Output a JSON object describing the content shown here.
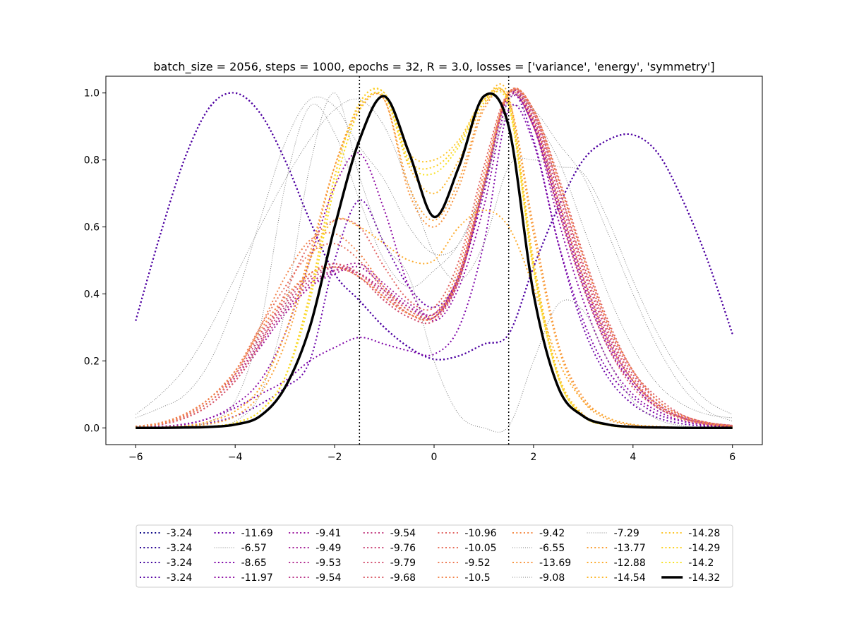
{
  "chart_data": {
    "type": "line",
    "title": "batch_size = 2056, steps = 1000, epochs = 32, R = 3.0, losses = ['variance', 'energy', 'symmetry']",
    "xlabel": "",
    "ylabel": "",
    "xlim": [
      -6.6,
      6.6
    ],
    "ylim": [
      -0.05,
      1.05
    ],
    "xticks": [
      -6,
      -4,
      -2,
      0,
      2,
      4,
      6
    ],
    "yticks": [
      0.0,
      0.2,
      0.4,
      0.6,
      0.8,
      1.0
    ],
    "xtick_labels": [
      "−6",
      "−4",
      "−2",
      "0",
      "2",
      "4",
      "6"
    ],
    "ytick_labels": [
      "0.0",
      "0.2",
      "0.4",
      "0.6",
      "0.8",
      "1.0"
    ],
    "grid": false,
    "legend_placement": "below",
    "legend_columns": 8,
    "vlines": [
      {
        "x": -1.5,
        "style": "dotted",
        "color": "#000000"
      },
      {
        "x": 1.5,
        "style": "dotted",
        "color": "#000000"
      }
    ],
    "x": [
      -6,
      -5.5,
      -5,
      -4.5,
      -4,
      -3.5,
      -3,
      -2.5,
      -2,
      -1.5,
      -1,
      -0.5,
      0,
      0.5,
      1,
      1.5,
      2,
      2.5,
      3,
      3.5,
      4,
      4.5,
      5,
      5.5,
      6
    ],
    "series": [
      {
        "name": "-3.24",
        "color": "#0d0887",
        "style": "dotted",
        "width": 2,
        "values": [
          0.32,
          0.58,
          0.81,
          0.96,
          1.0,
          0.94,
          0.8,
          0.62,
          0.46,
          0.38,
          0.3,
          0.24,
          0.205,
          0.215,
          0.25,
          0.28,
          0.48,
          0.66,
          0.8,
          0.86,
          0.875,
          0.82,
          0.68,
          0.5,
          0.28
        ]
      },
      {
        "name": "-3.24",
        "color": "#2a0593",
        "style": "dotted",
        "width": 2,
        "values": [
          0.32,
          0.58,
          0.81,
          0.96,
          1.0,
          0.94,
          0.8,
          0.62,
          0.46,
          0.38,
          0.3,
          0.24,
          0.205,
          0.215,
          0.25,
          0.28,
          0.48,
          0.66,
          0.8,
          0.86,
          0.875,
          0.82,
          0.68,
          0.5,
          0.28
        ]
      },
      {
        "name": "-3.24",
        "color": "#41049d",
        "style": "dotted",
        "width": 2,
        "values": [
          0.32,
          0.58,
          0.81,
          0.96,
          1.0,
          0.94,
          0.8,
          0.62,
          0.46,
          0.38,
          0.3,
          0.24,
          0.205,
          0.215,
          0.25,
          0.28,
          0.48,
          0.66,
          0.8,
          0.86,
          0.875,
          0.82,
          0.68,
          0.5,
          0.28
        ]
      },
      {
        "name": "-3.24",
        "color": "#5601a4",
        "style": "dotted",
        "width": 2,
        "values": [
          0.32,
          0.58,
          0.81,
          0.96,
          1.0,
          0.94,
          0.8,
          0.62,
          0.46,
          0.38,
          0.3,
          0.24,
          0.205,
          0.215,
          0.25,
          0.28,
          0.48,
          0.66,
          0.8,
          0.86,
          0.875,
          0.82,
          0.68,
          0.5,
          0.28
        ]
      },
      {
        "name": "-11.69",
        "color": "#6a00a8",
        "style": "dotted",
        "width": 2,
        "values": [
          0.0,
          0.002,
          0.006,
          0.015,
          0.035,
          0.07,
          0.12,
          0.2,
          0.5,
          0.68,
          0.55,
          0.42,
          0.36,
          0.45,
          0.7,
          1.0,
          0.86,
          0.55,
          0.3,
          0.15,
          0.07,
          0.03,
          0.012,
          0.005,
          0.002
        ]
      },
      {
        "name": "-6.57",
        "color": "#808080",
        "style": "dotted-thin",
        "width": 1,
        "values": [
          0.03,
          0.06,
          0.1,
          0.2,
          0.38,
          0.62,
          0.85,
          0.98,
          0.96,
          0.84,
          0.74,
          0.6,
          0.52,
          0.55,
          0.72,
          0.95,
          0.92,
          0.8,
          0.6,
          0.4,
          0.24,
          0.13,
          0.07,
          0.04,
          0.03
        ]
      },
      {
        "name": "-8.65",
        "color": "#7e03a8",
        "style": "dotted",
        "width": 2,
        "values": [
          0.0,
          0.003,
          0.01,
          0.03,
          0.06,
          0.1,
          0.14,
          0.2,
          0.24,
          0.27,
          0.25,
          0.23,
          0.22,
          0.3,
          0.55,
          0.95,
          0.85,
          0.55,
          0.32,
          0.17,
          0.09,
          0.04,
          0.02,
          0.008,
          0.003
        ]
      },
      {
        "name": "-11.97",
        "color": "#8f0da4",
        "style": "dotted",
        "width": 2,
        "values": [
          0.0,
          0.004,
          0.012,
          0.03,
          0.07,
          0.14,
          0.28,
          0.5,
          0.72,
          0.82,
          0.65,
          0.42,
          0.32,
          0.42,
          0.66,
          0.98,
          0.9,
          0.62,
          0.38,
          0.2,
          0.1,
          0.05,
          0.02,
          0.008,
          0.003
        ]
      },
      {
        "name": "-9.41",
        "color": "#9c179e",
        "style": "dotted",
        "width": 2,
        "values": [
          0.002,
          0.01,
          0.03,
          0.07,
          0.14,
          0.24,
          0.34,
          0.42,
          0.46,
          0.48,
          0.42,
          0.36,
          0.33,
          0.45,
          0.72,
          0.99,
          0.9,
          0.65,
          0.42,
          0.24,
          0.13,
          0.06,
          0.03,
          0.012,
          0.005
        ]
      },
      {
        "name": "-9.49",
        "color": "#a62098",
        "style": "dotted",
        "width": 2,
        "values": [
          0.002,
          0.01,
          0.03,
          0.07,
          0.14,
          0.24,
          0.34,
          0.42,
          0.47,
          0.49,
          0.43,
          0.37,
          0.34,
          0.46,
          0.73,
          1.0,
          0.91,
          0.66,
          0.43,
          0.25,
          0.13,
          0.06,
          0.03,
          0.012,
          0.005
        ]
      },
      {
        "name": "-9.53",
        "color": "#b12a90",
        "style": "dotted",
        "width": 2,
        "values": [
          0.003,
          0.012,
          0.035,
          0.08,
          0.15,
          0.25,
          0.35,
          0.43,
          0.47,
          0.46,
          0.41,
          0.36,
          0.34,
          0.45,
          0.72,
          0.99,
          0.91,
          0.67,
          0.44,
          0.26,
          0.14,
          0.07,
          0.03,
          0.013,
          0.006
        ]
      },
      {
        "name": "-9.54",
        "color": "#ba3388",
        "style": "dotted",
        "width": 2,
        "values": [
          0.003,
          0.012,
          0.035,
          0.08,
          0.15,
          0.25,
          0.35,
          0.43,
          0.47,
          0.46,
          0.41,
          0.35,
          0.33,
          0.44,
          0.72,
          1.0,
          0.92,
          0.68,
          0.45,
          0.27,
          0.14,
          0.07,
          0.03,
          0.013,
          0.006
        ]
      },
      {
        "name": "-9.54",
        "color": "#c33d80",
        "style": "dotted",
        "width": 2,
        "values": [
          0.003,
          0.012,
          0.036,
          0.08,
          0.15,
          0.26,
          0.36,
          0.44,
          0.48,
          0.46,
          0.4,
          0.34,
          0.33,
          0.45,
          0.73,
          1.0,
          0.93,
          0.7,
          0.47,
          0.28,
          0.15,
          0.07,
          0.03,
          0.013,
          0.006
        ]
      },
      {
        "name": "-9.76",
        "color": "#cc4778",
        "style": "dotted",
        "width": 2,
        "values": [
          0.004,
          0.014,
          0.04,
          0.09,
          0.16,
          0.27,
          0.37,
          0.45,
          0.48,
          0.45,
          0.38,
          0.33,
          0.32,
          0.44,
          0.72,
          1.0,
          0.94,
          0.72,
          0.49,
          0.3,
          0.16,
          0.08,
          0.035,
          0.015,
          0.007
        ]
      },
      {
        "name": "-9.79",
        "color": "#d35171",
        "style": "dotted",
        "width": 2,
        "values": [
          0.004,
          0.015,
          0.042,
          0.09,
          0.17,
          0.28,
          0.38,
          0.46,
          0.49,
          0.45,
          0.38,
          0.33,
          0.32,
          0.44,
          0.72,
          1.0,
          0.95,
          0.74,
          0.51,
          0.31,
          0.17,
          0.08,
          0.037,
          0.016,
          0.007
        ]
      },
      {
        "name": "-9.68",
        "color": "#db5c68",
        "style": "dotted",
        "width": 2,
        "values": [
          0.004,
          0.015,
          0.042,
          0.09,
          0.17,
          0.28,
          0.38,
          0.46,
          0.49,
          0.46,
          0.39,
          0.34,
          0.33,
          0.45,
          0.73,
          1.0,
          0.95,
          0.75,
          0.52,
          0.32,
          0.17,
          0.09,
          0.038,
          0.016,
          0.007
        ]
      },
      {
        "name": "-10.96",
        "color": "#e16462",
        "style": "dotted",
        "width": 2,
        "values": [
          0.003,
          0.01,
          0.03,
          0.07,
          0.14,
          0.25,
          0.4,
          0.55,
          0.62,
          0.6,
          0.48,
          0.38,
          0.36,
          0.5,
          0.78,
          1.0,
          0.9,
          0.65,
          0.42,
          0.24,
          0.12,
          0.06,
          0.025,
          0.01,
          0.004
        ]
      },
      {
        "name": "-10.05",
        "color": "#e76f5a",
        "style": "dotted",
        "width": 2,
        "values": [
          0.004,
          0.014,
          0.04,
          0.09,
          0.17,
          0.3,
          0.42,
          0.52,
          0.55,
          0.5,
          0.41,
          0.34,
          0.33,
          0.46,
          0.74,
          1.0,
          0.94,
          0.72,
          0.48,
          0.29,
          0.15,
          0.07,
          0.032,
          0.013,
          0.005
        ]
      },
      {
        "name": "-9.52",
        "color": "#ed7953",
        "style": "dotted",
        "width": 2,
        "values": [
          0.004,
          0.015,
          0.042,
          0.09,
          0.17,
          0.29,
          0.39,
          0.46,
          0.48,
          0.45,
          0.39,
          0.34,
          0.33,
          0.45,
          0.73,
          1.0,
          0.95,
          0.74,
          0.51,
          0.31,
          0.17,
          0.08,
          0.036,
          0.015,
          0.006
        ]
      },
      {
        "name": "-10.5",
        "color": "#f2844b",
        "style": "dotted",
        "width": 2,
        "values": [
          0.003,
          0.012,
          0.035,
          0.08,
          0.16,
          0.3,
          0.45,
          0.56,
          0.58,
          0.52,
          0.42,
          0.35,
          0.34,
          0.48,
          0.76,
          1.0,
          0.92,
          0.68,
          0.45,
          0.26,
          0.14,
          0.065,
          0.028,
          0.011,
          0.004
        ]
      },
      {
        "name": "-9.42",
        "color": "#f58b47",
        "style": "dotted",
        "width": 2,
        "values": [
          0.004,
          0.015,
          0.042,
          0.09,
          0.17,
          0.29,
          0.39,
          0.46,
          0.48,
          0.45,
          0.39,
          0.34,
          0.33,
          0.45,
          0.73,
          1.0,
          0.95,
          0.74,
          0.51,
          0.31,
          0.17,
          0.08,
          0.036,
          0.015,
          0.006
        ]
      },
      {
        "name": "-6.55",
        "color": "#808080",
        "style": "dotted-thin",
        "width": 1,
        "values": [
          0.0,
          0.002,
          0.005,
          0.02,
          0.08,
          0.3,
          0.72,
          0.96,
          0.88,
          0.68,
          0.5,
          0.42,
          0.47,
          0.55,
          0.72,
          0.98,
          0.95,
          0.85,
          0.75,
          0.58,
          0.4,
          0.24,
          0.12,
          0.05,
          0.02
        ]
      },
      {
        "name": "-13.69",
        "color": "#f89540",
        "style": "dotted",
        "width": 2,
        "values": [
          0.0,
          0.002,
          0.006,
          0.02,
          0.05,
          0.12,
          0.28,
          0.52,
          0.78,
          0.95,
          0.98,
          0.7,
          0.6,
          0.72,
          0.95,
          0.98,
          0.6,
          0.25,
          0.09,
          0.03,
          0.01,
          0.004,
          0.001,
          0.0,
          0.0
        ]
      },
      {
        "name": "-9.08",
        "color": "#808080",
        "style": "dotted-thin",
        "width": 1,
        "values": [
          0.0,
          0.0,
          0.001,
          0.004,
          0.02,
          0.1,
          0.35,
          0.78,
          1.0,
          0.75,
          0.55,
          0.45,
          0.2,
          0.04,
          0.0,
          0.005,
          0.2,
          0.37,
          0.35,
          0.2,
          0.08,
          0.025,
          0.006,
          0.001,
          0.0
        ]
      },
      {
        "name": "-7.29",
        "color": "#808080",
        "style": "dotted-thin",
        "width": 1,
        "values": [
          0.04,
          0.1,
          0.18,
          0.3,
          0.45,
          0.6,
          0.74,
          0.86,
          0.95,
          0.98,
          0.9,
          0.72,
          0.52,
          0.44,
          0.55,
          0.78,
          0.8,
          0.78,
          0.76,
          0.62,
          0.44,
          0.28,
          0.16,
          0.08,
          0.04
        ]
      },
      {
        "name": "-13.77",
        "color": "#faa035",
        "style": "dotted",
        "width": 2,
        "values": [
          0.0,
          0.001,
          0.004,
          0.012,
          0.035,
          0.1,
          0.25,
          0.5,
          0.78,
          0.96,
          0.98,
          0.72,
          0.62,
          0.74,
          0.96,
          0.98,
          0.58,
          0.24,
          0.08,
          0.025,
          0.008,
          0.002,
          0.001,
          0.0,
          0.0
        ]
      },
      {
        "name": "-12.88",
        "color": "#fcab2d",
        "style": "dotted",
        "width": 2,
        "values": [
          0.0,
          0.002,
          0.006,
          0.02,
          0.05,
          0.12,
          0.28,
          0.5,
          0.62,
          0.6,
          0.55,
          0.5,
          0.5,
          0.6,
          0.65,
          0.6,
          0.42,
          0.2,
          0.08,
          0.03,
          0.01,
          0.004,
          0.001,
          0.0,
          0.0
        ]
      },
      {
        "name": "-14.54",
        "color": "#fdb72a",
        "style": "dotted",
        "width": 2,
        "values": [
          0.0,
          0.0,
          0.001,
          0.004,
          0.015,
          0.05,
          0.15,
          0.38,
          0.72,
          0.95,
          0.99,
          0.78,
          0.7,
          0.8,
          0.97,
          0.99,
          0.5,
          0.16,
          0.04,
          0.01,
          0.002,
          0.0,
          0.0,
          0.0,
          0.0
        ]
      },
      {
        "name": "-14.28",
        "color": "#fdc527",
        "style": "dotted",
        "width": 2,
        "values": [
          0.0,
          0.0,
          0.001,
          0.004,
          0.015,
          0.05,
          0.15,
          0.4,
          0.75,
          0.97,
          1.0,
          0.82,
          0.8,
          0.86,
          0.98,
          0.97,
          0.48,
          0.15,
          0.035,
          0.008,
          0.002,
          0.0,
          0.0,
          0.0,
          0.0
        ]
      },
      {
        "name": "-14.29",
        "color": "#fcd225",
        "style": "dotted",
        "width": 2,
        "values": [
          0.0,
          0.0,
          0.001,
          0.004,
          0.015,
          0.05,
          0.15,
          0.4,
          0.75,
          0.97,
          1.0,
          0.8,
          0.78,
          0.85,
          0.98,
          0.97,
          0.48,
          0.15,
          0.035,
          0.008,
          0.002,
          0.0,
          0.0,
          0.0,
          0.0
        ]
      },
      {
        "name": "-14.2",
        "color": "#f7e225",
        "style": "dotted",
        "width": 2,
        "values": [
          0.0,
          0.0,
          0.001,
          0.004,
          0.015,
          0.05,
          0.15,
          0.38,
          0.72,
          0.95,
          0.99,
          0.79,
          0.76,
          0.84,
          0.97,
          0.96,
          0.47,
          0.15,
          0.035,
          0.008,
          0.002,
          0.0,
          0.0,
          0.0,
          0.0
        ]
      },
      {
        "name": "-14.32",
        "color": "#000000",
        "style": "solid",
        "width": 3.5,
        "values": [
          0.0,
          0.0,
          0.001,
          0.003,
          0.01,
          0.035,
          0.12,
          0.3,
          0.6,
          0.86,
          0.99,
          0.82,
          0.63,
          0.78,
          0.99,
          0.9,
          0.4,
          0.12,
          0.035,
          0.01,
          0.003,
          0.001,
          0.0,
          0.0,
          0.0
        ]
      }
    ]
  }
}
